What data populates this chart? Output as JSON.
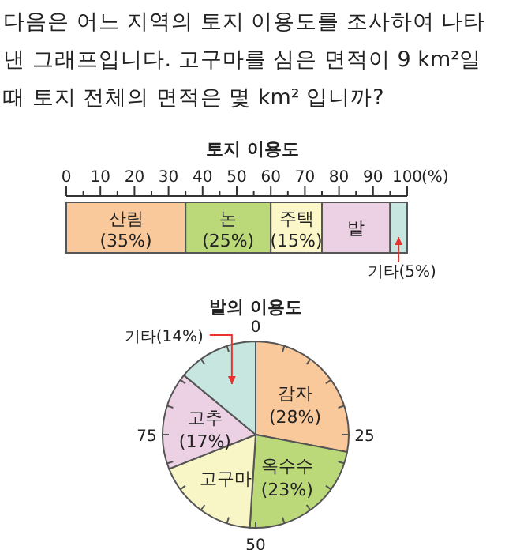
{
  "chart_data": [
    {
      "type": "bar",
      "orientation": "horizontal",
      "stacked": true,
      "title": "토지 이용도",
      "annotations": [
        "다음은 어느 지역의 토지 이용도를 조사하여 나타낸 그래프입니다. 고구마를 심은 면적이 9 km²일 때 토지 전체의 면적은 몇 km² 입니까?"
      ],
      "categories": [
        null
      ],
      "legend": false,
      "xlim": [
        0,
        100
      ],
      "xticks": [
        0,
        {
          "value": 5,
          "label": null
        },
        10,
        {
          "value": 15,
          "label": null
        },
        20,
        {
          "value": 25,
          "label": null
        },
        30,
        {
          "value": 35,
          "label": null
        },
        40,
        {
          "value": 45,
          "label": null
        },
        50,
        {
          "value": 55,
          "label": null
        },
        60,
        {
          "value": 65,
          "label": null
        },
        70,
        {
          "value": 75,
          "label": null
        },
        80,
        {
          "value": 85,
          "label": null
        },
        90,
        {
          "value": 95,
          "label": null
        },
        100
      ],
      "xlabel": "(%)",
      "series": [
        {
          "name": "산림",
          "color": "#f9c89b",
          "values": [
            35
          ],
          "value_labels": [
            "(35%)"
          ]
        },
        {
          "name": "논",
          "color": "#bcd97a",
          "values": [
            25
          ],
          "value_labels": [
            "(25%)"
          ]
        },
        {
          "name": "주택",
          "color": "#fbf7c8",
          "values": [
            15
          ],
          "value_labels": [
            "(15%)"
          ]
        },
        {
          "name": "밭",
          "color": "#ecd0e4",
          "values": [
            20
          ],
          "value_labels": [
            null
          ]
        },
        {
          "name": "기타",
          "color": "#c7e6df",
          "values": [
            5
          ],
          "value_labels": [
            "(5%)"
          ]
        }
      ]
    },
    {
      "type": "pie",
      "title": "밭의 이용도",
      "categories": [
        "감자",
        "옥수수",
        "고구마",
        "고추",
        "기타"
      ],
      "values": [
        28,
        23,
        18,
        17,
        14
      ],
      "value_labels": [
        "(28%)",
        "(23%)",
        null,
        "(17%)",
        "(14%)"
      ],
      "colors": [
        "#f9c89b",
        "#bcd97a",
        "#f8f5c6",
        "#ecd0e4",
        "#c7e6df"
      ],
      "annotations": [
        "0",
        "25",
        "50",
        "75"
      ]
    }
  ]
}
